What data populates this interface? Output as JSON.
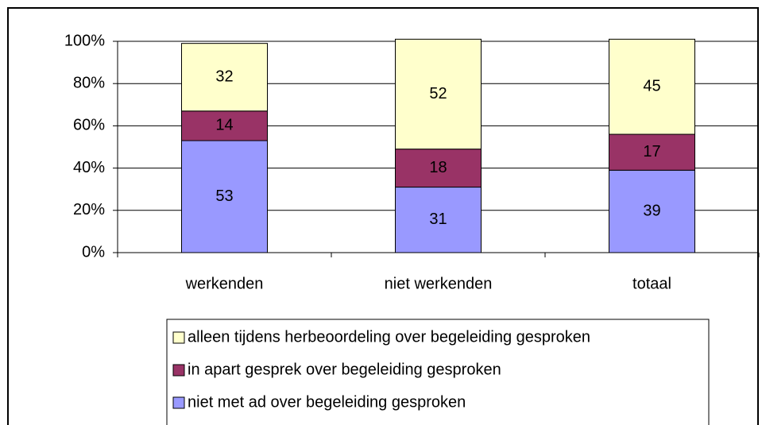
{
  "chart_data": {
    "type": "bar",
    "stacked": true,
    "categories": [
      "werkenden",
      "niet werkenden",
      "totaal"
    ],
    "series": [
      {
        "name": "niet met ad over begeleiding gesproken",
        "color": "#9999ff",
        "values": [
          53,
          31,
          39
        ]
      },
      {
        "name": "in apart gesprek over begeleiding gesproken",
        "color": "#993366",
        "values": [
          14,
          18,
          17
        ]
      },
      {
        "name": "alleen tijdens herbeoordeling over begeleiding gesproken",
        "color": "#ffffcc",
        "values": [
          32,
          52,
          45
        ]
      }
    ],
    "ylim": [
      0,
      100
    ],
    "yticks": [
      {
        "value": 0,
        "label": "0%"
      },
      {
        "value": 20,
        "label": "20%"
      },
      {
        "value": 40,
        "label": "40%"
      },
      {
        "value": 60,
        "label": "60%"
      },
      {
        "value": 80,
        "label": "80%"
      },
      {
        "value": 100,
        "label": "100%"
      }
    ],
    "grid": true,
    "legend": "bottom"
  }
}
